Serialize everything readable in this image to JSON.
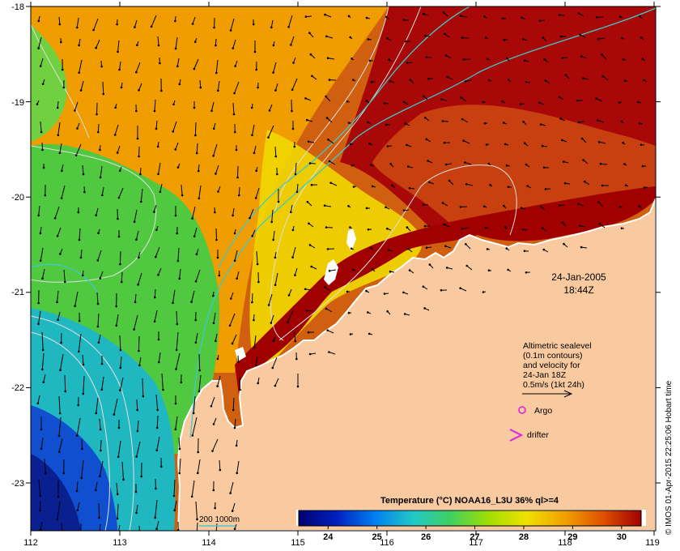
{
  "map": {
    "lon_ticks": [
      "112",
      "113",
      "114",
      "115",
      "116",
      "117",
      "118",
      "119"
    ],
    "lat_ticks": [
      "-18",
      "-19",
      "-20",
      "-21",
      "-22",
      "-23"
    ],
    "date": "24-Jan-2005",
    "time": "18:44Z",
    "credit": "© IMOS 01-Apr-2015 22:25:06 Hobart time",
    "bathymetry_label": "200  1000m",
    "colors": {
      "land": "#f9c9a0",
      "coast": "#ffffff",
      "contour": "#d8d8d8",
      "bathy": "#40c8c8"
    }
  },
  "velocity_legend": {
    "lines": [
      "Altimetric sealevel",
      "(0.1m contours)",
      "and velocity for",
      "24-Jan 18Z",
      "0.5m/s (1kt 24h)"
    ]
  },
  "markers": {
    "argo": {
      "label": "Argo",
      "color": "#e020e0"
    },
    "drifter": {
      "label": "drifter",
      "color": "#e020e0"
    }
  },
  "colorbar": {
    "title": "Temperature (°C) NOAA16_L3U 36% ql>=4",
    "ticks": [
      "24",
      "25",
      "26",
      "27",
      "28",
      "29",
      "30"
    ],
    "range": [
      23.4,
      30.4
    ],
    "stops": [
      "#00006e",
      "#0020c0",
      "#0080f0",
      "#20c8c8",
      "#40d060",
      "#a0e000",
      "#f0e000",
      "#f0a000",
      "#e05000",
      "#a00000"
    ]
  }
}
